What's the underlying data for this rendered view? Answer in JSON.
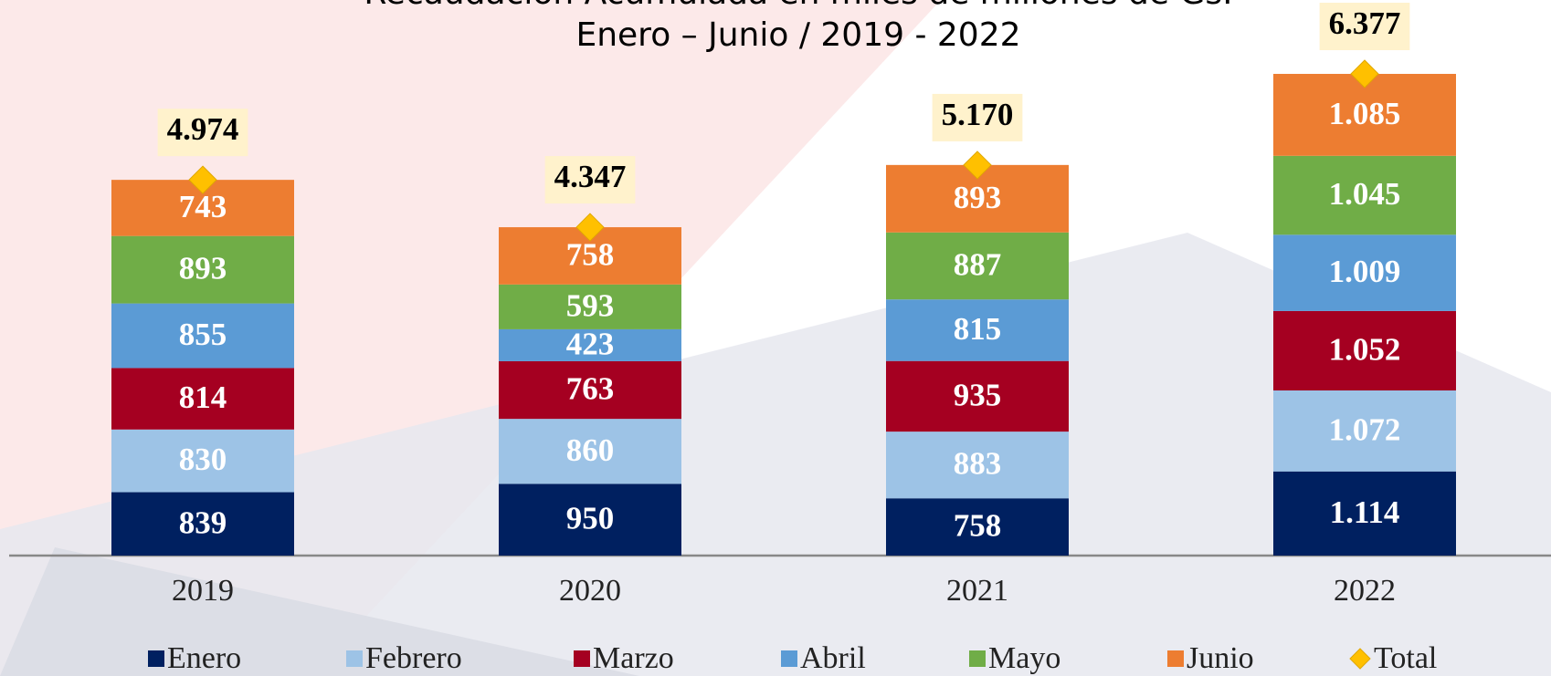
{
  "chart_data": {
    "type": "stacked_bar",
    "title": "Recaudación Acumulada en miles de millones de Gs.",
    "subtitle": "Enero – Junio / 2019 - 2022",
    "categories": [
      "2019",
      "2020",
      "2021",
      "2022"
    ],
    "series": [
      {
        "name": "Enero",
        "color": "#002060",
        "values": [
          839,
          950,
          758,
          1114
        ],
        "value_labels": [
          "839",
          "950",
          "758",
          "1.114"
        ]
      },
      {
        "name": "Febrero",
        "color": "#9dc3e6",
        "values": [
          830,
          860,
          883,
          1072
        ],
        "value_labels": [
          "830",
          "860",
          "883",
          "1.072"
        ]
      },
      {
        "name": "Marzo",
        "color": "#a50021",
        "values": [
          814,
          763,
          935,
          1052
        ],
        "value_labels": [
          "814",
          "763",
          "935",
          "1.052"
        ]
      },
      {
        "name": "Abril",
        "color": "#5b9bd5",
        "values": [
          855,
          423,
          815,
          1009
        ],
        "value_labels": [
          "855",
          "423",
          "815",
          "1.009"
        ]
      },
      {
        "name": "Mayo",
        "color": "#70ad47",
        "values": [
          893,
          593,
          887,
          1045
        ],
        "value_labels": [
          "893",
          "593",
          "887",
          "1.045"
        ]
      },
      {
        "name": "Junio",
        "color": "#ed7d31",
        "values": [
          743,
          758,
          893,
          1085
        ],
        "value_labels": [
          "743",
          "758",
          "893",
          "1.085"
        ]
      }
    ],
    "totals": {
      "name": "Total",
      "color": "#ffc000",
      "values": [
        4974,
        4347,
        5170,
        6377
      ],
      "value_labels": [
        "4.974",
        "4.347",
        "5.170",
        "6.377"
      ]
    }
  }
}
